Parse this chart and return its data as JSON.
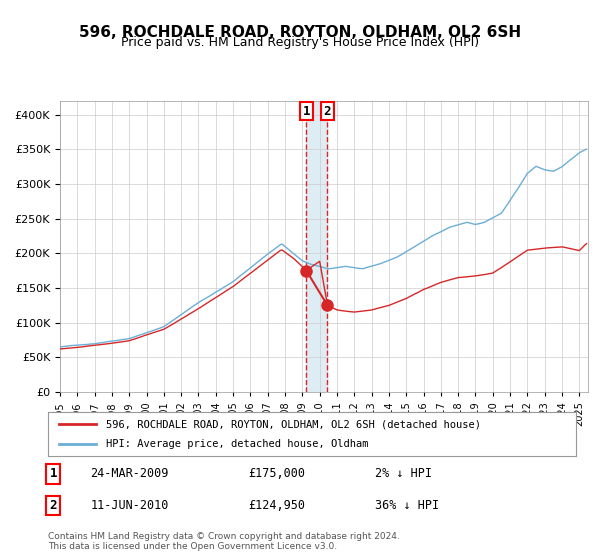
{
  "title": "596, ROCHDALE ROAD, ROYTON, OLDHAM, OL2 6SH",
  "subtitle": "Price paid vs. HM Land Registry's House Price Index (HPI)",
  "transaction1": {
    "date": "24-MAR-2009",
    "price": 175000,
    "hpi_diff": "2% ↓ HPI",
    "x_year": 2009.23
  },
  "transaction2": {
    "date": "11-JUN-2010",
    "price": 124950,
    "hpi_diff": "36% ↓ HPI",
    "x_year": 2010.45
  },
  "legend_line1": "596, ROCHDALE ROAD, ROYTON, OLDHAM, OL2 6SH (detached house)",
  "legend_line2": "HPI: Average price, detached house, Oldham",
  "footer": "Contains HM Land Registry data © Crown copyright and database right 2024.\nThis data is licensed under the Open Government Licence v3.0.",
  "hpi_color": "#6baed6",
  "price_color": "#d62728",
  "background_color": "#ffffff",
  "grid_color": "#cccccc",
  "ylim": [
    0,
    420000
  ],
  "xlim_start": 1995.0,
  "xlim_end": 2025.5
}
